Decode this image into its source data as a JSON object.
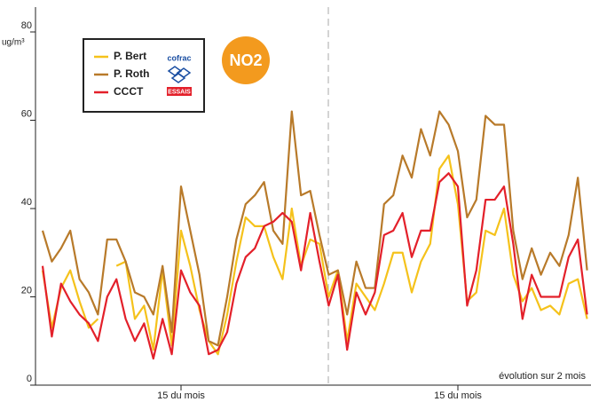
{
  "chart_data": {
    "type": "line",
    "y_unit": "ug/m³",
    "annotation": "évolution sur 2 mois",
    "badge": "NO2",
    "logo": {
      "top": "cofrac",
      "bottom": "ESSAIS"
    },
    "categories": [
      null,
      null,
      null,
      null,
      null,
      null,
      null,
      null,
      null,
      null,
      null,
      null,
      null,
      null,
      null,
      "15 du mois",
      null,
      null,
      null,
      null,
      null,
      null,
      null,
      null,
      null,
      null,
      null,
      null,
      null,
      null,
      null,
      null,
      null,
      null,
      null,
      null,
      null,
      null,
      null,
      null,
      null,
      null,
      null,
      null,
      null,
      "15 du mois",
      null,
      null,
      null,
      null,
      null,
      null,
      null,
      null,
      null,
      null,
      null,
      null,
      null,
      null
    ],
    "series": [
      {
        "name": "P. Bert",
        "color": "#f5c21b",
        "values": [
          26,
          13,
          22,
          26,
          19,
          13,
          15,
          null,
          27,
          28,
          15,
          18,
          8,
          26,
          9,
          35,
          27,
          17,
          10,
          7,
          16,
          28,
          38,
          36,
          36,
          29,
          24,
          40,
          27,
          33,
          32,
          20,
          26,
          10,
          23,
          20,
          17,
          23,
          30,
          30,
          21,
          28,
          32,
          49,
          52,
          41,
          19,
          21,
          35,
          34,
          40,
          25,
          19,
          22,
          17,
          18,
          16,
          23,
          24,
          15
        ]
      },
      {
        "name": "P. Roth",
        "color": "#b87a2a",
        "values": [
          35,
          28,
          31,
          35,
          24,
          21,
          16,
          33,
          33,
          28,
          21,
          20,
          16,
          27,
          12,
          45,
          35,
          25,
          10,
          9,
          20,
          33,
          41,
          43,
          46,
          35,
          32,
          62,
          43,
          44,
          34,
          25,
          26,
          16,
          28,
          22,
          22,
          41,
          43,
          52,
          47,
          58,
          52,
          62,
          59,
          53,
          38,
          42,
          61,
          59,
          59,
          35,
          24,
          31,
          25,
          30,
          27,
          34,
          47,
          26
        ]
      },
      {
        "name": "CCCT",
        "color": "#e3202a",
        "values": [
          27,
          11,
          23,
          19,
          16,
          14,
          10,
          20,
          24,
          15,
          10,
          14,
          6,
          15,
          7,
          26,
          21,
          18,
          7,
          8,
          12,
          23,
          29,
          31,
          36,
          37,
          39,
          37,
          26,
          39,
          28,
          18,
          25,
          8,
          21,
          16,
          21,
          34,
          35,
          39,
          29,
          35,
          35,
          46,
          48,
          45,
          18,
          26,
          42,
          42,
          45,
          32,
          15,
          25,
          20,
          20,
          20,
          29,
          33,
          16
        ]
      }
    ],
    "ylim": [
      0,
      80
    ],
    "yticks": [
      0,
      20,
      40,
      60,
      80
    ]
  }
}
